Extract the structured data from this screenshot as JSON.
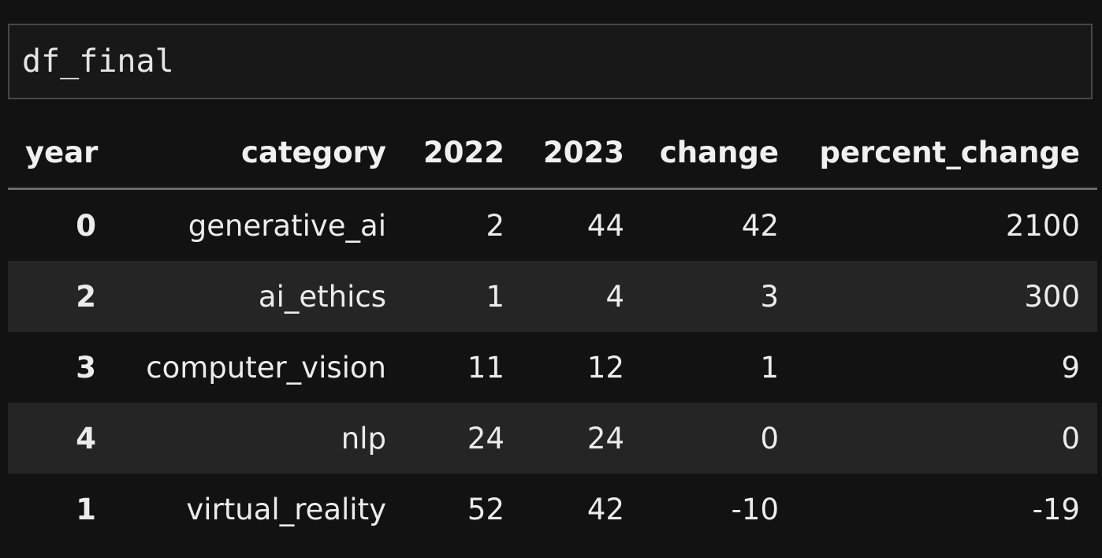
{
  "cell": {
    "code": "df_final"
  },
  "table": {
    "columns": [
      "year",
      "category",
      "2022",
      "2023",
      "change",
      "percent_change"
    ],
    "rows": [
      {
        "index": "0",
        "category": "generative_ai",
        "y2022": "2",
        "y2023": "44",
        "change": "42",
        "percent_change": "2100"
      },
      {
        "index": "2",
        "category": "ai_ethics",
        "y2022": "1",
        "y2023": "4",
        "change": "3",
        "percent_change": "300"
      },
      {
        "index": "3",
        "category": "computer_vision",
        "y2022": "11",
        "y2023": "12",
        "change": "1",
        "percent_change": "9"
      },
      {
        "index": "4",
        "category": "nlp",
        "y2022": "24",
        "y2023": "24",
        "change": "0",
        "percent_change": "0"
      },
      {
        "index": "1",
        "category": "virtual_reality",
        "y2022": "52",
        "y2023": "42",
        "change": "-10",
        "percent_change": "-19"
      }
    ]
  },
  "colors": {
    "background": "#121212",
    "cell_border": "#474747",
    "row_stripe": "#252525",
    "text": "#ececec"
  }
}
